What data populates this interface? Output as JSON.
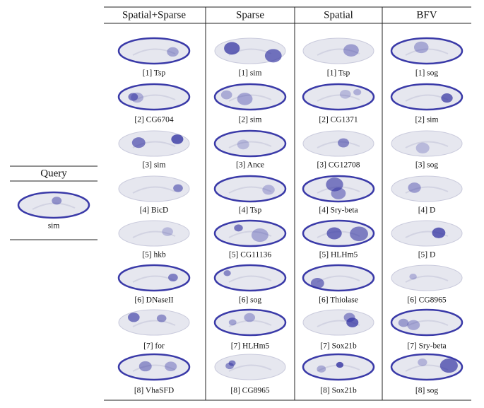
{
  "query": {
    "title": "Query",
    "label": "sim"
  },
  "table": {
    "headers": [
      "Spatial+Sparse",
      "Sparse",
      "Spatial",
      "BFV"
    ],
    "columns": [
      [
        "[1] Tsp",
        "[2] CG6704",
        "[3] sim",
        "[4] BicD",
        "[5] hkb",
        "[6] DNaseII",
        "[7] for",
        "[8] VhaSFD"
      ],
      [
        "[1] sim",
        "[2] sim",
        "[3] Ance",
        "[4] Tsp",
        "[5] CG11136",
        "[6] sog",
        "[7] HLHm5",
        "[8] CG8965"
      ],
      [
        "[1] Tsp",
        "[2] CG1371",
        "[3] CG12708",
        "[4] Sry-beta",
        "[5] HLHm5",
        "[6] Thiolase",
        "[7] Sox21b",
        "[8] Sox21b"
      ],
      [
        "[1] sog",
        "[2] sim",
        "[3] sog",
        "[4] D",
        "[5] D",
        "[6] CG8965",
        "[7] Sry-beta",
        "[8] sog"
      ]
    ]
  }
}
